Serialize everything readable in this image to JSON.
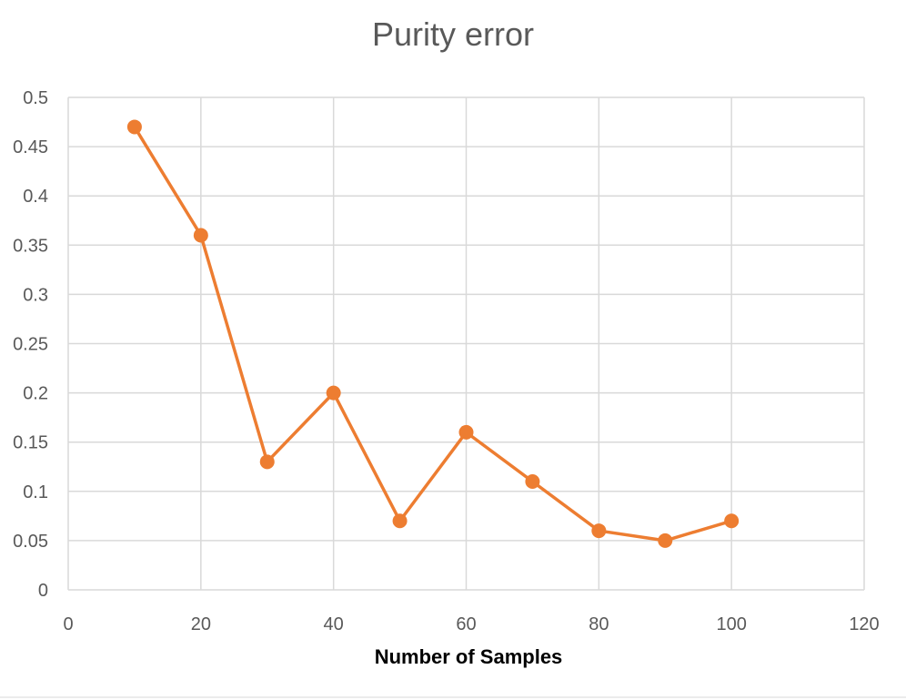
{
  "chart_data": {
    "type": "scatter",
    "title": "Purity error",
    "xlabel": "Number of Samples",
    "ylabel": "",
    "xlim": [
      0,
      120
    ],
    "ylim": [
      0,
      0.5
    ],
    "x_ticks": [
      0,
      20,
      40,
      60,
      80,
      100,
      120
    ],
    "x_tick_labels": [
      "0",
      "20",
      "40",
      "60",
      "80",
      "100",
      "120"
    ],
    "y_ticks": [
      0,
      0.05,
      0.1,
      0.15,
      0.2,
      0.25,
      0.3,
      0.35,
      0.4,
      0.45,
      0.5
    ],
    "y_tick_labels": [
      "0",
      "0.05",
      "0.1",
      "0.15",
      "0.2",
      "0.25",
      "0.3",
      "0.35",
      "0.4",
      "0.45",
      "0.5"
    ],
    "grid": true,
    "legend": "none",
    "series": [
      {
        "color": "#ED7D31",
        "line": true,
        "markers": true,
        "x": [
          10,
          20,
          30,
          40,
          50,
          60,
          70,
          80,
          90,
          100
        ],
        "y": [
          0.47,
          0.36,
          0.13,
          0.2,
          0.07,
          0.16,
          0.11,
          0.06,
          0.05,
          0.07
        ]
      }
    ]
  }
}
